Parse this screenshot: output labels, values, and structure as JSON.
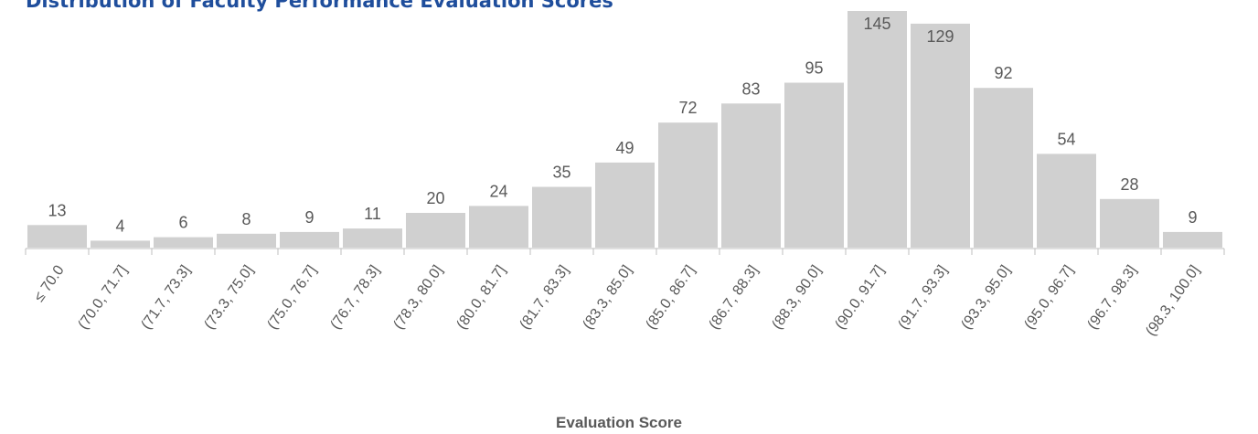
{
  "chart_data": {
    "type": "bar",
    "title": "Distribution of Faculty Performance Evaluation Scores",
    "x_label": "Evaluation Score",
    "categories": [
      "≤ 70.0",
      "(70.0, 71.7]",
      "(71.7, 73.3]",
      "(73.3, 75.0]",
      "(75.0, 76.7]",
      "(76.7, 78.3]",
      "(78.3, 80.0]",
      "(80.0, 81.7]",
      "(81.7, 83.3]",
      "(83.3, 85.0]",
      "(85.0, 86.7]",
      "(86.7, 88.3]",
      "(88.3, 90.0]",
      "(90.0, 91.7]",
      "(91.7, 93.3]",
      "(93.3, 95.0]",
      "(95.0, 96.7]",
      "(96.7, 98.3]",
      "(98.3, 100.0]"
    ],
    "values": [
      13,
      4,
      6,
      8,
      9,
      11,
      20,
      24,
      35,
      49,
      72,
      83,
      95,
      145,
      129,
      92,
      54,
      28,
      9
    ],
    "color": "#d0d0d0"
  }
}
